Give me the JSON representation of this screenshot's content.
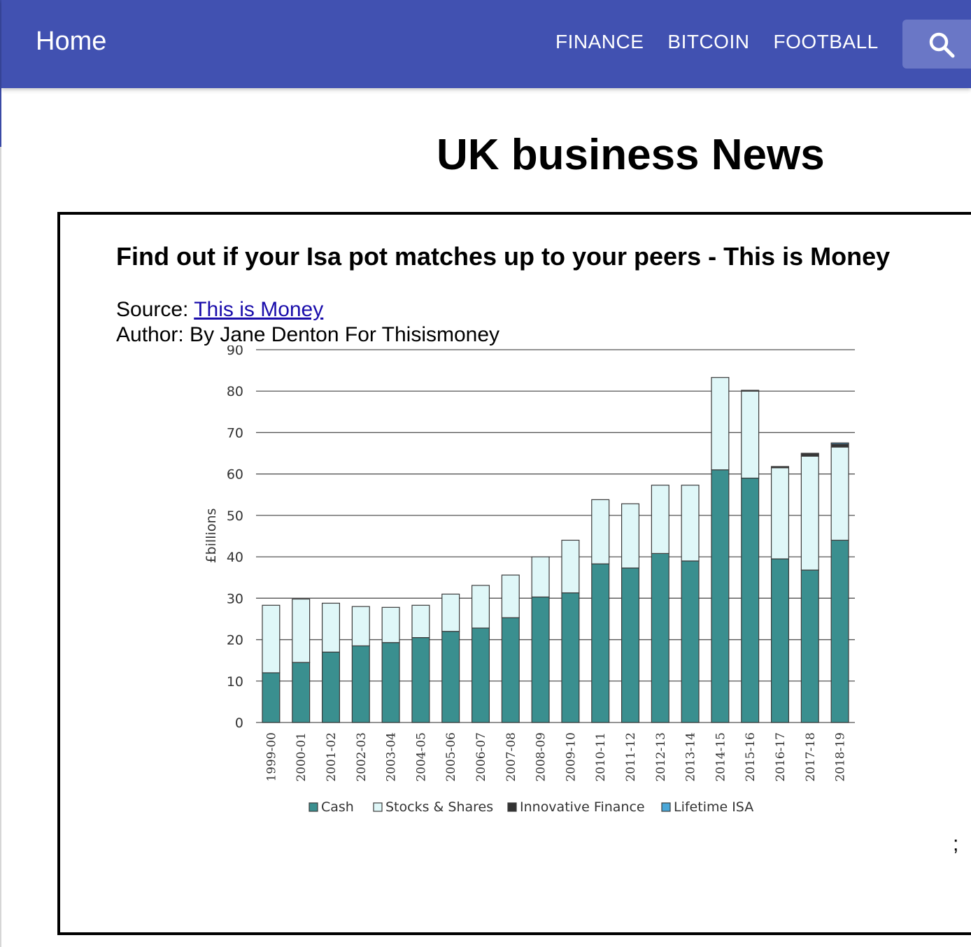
{
  "nav": {
    "home": "Home",
    "links": [
      "FINANCE",
      "BITCOIN",
      "FOOTBALL"
    ],
    "brand_color": "#4151b1"
  },
  "page": {
    "title": "UK business News"
  },
  "article": {
    "title": "Find out if your Isa pot matches up to your peers - This is Money",
    "source_label": "Source: ",
    "source_link": "This is Money",
    "author": "Author: By Jane Denton For Thisismoney",
    "trailing_char": ";"
  },
  "chart_data": {
    "type": "bar",
    "stacked": true,
    "title": "",
    "xlabel": "",
    "ylabel": "£billions",
    "ylim": [
      0,
      90
    ],
    "yticks": [
      0,
      10,
      20,
      30,
      40,
      50,
      60,
      70,
      80,
      90
    ],
    "grid": true,
    "legend_position": "bottom",
    "categories": [
      "1999-00",
      "2000-01",
      "2001-02",
      "2002-03",
      "2003-04",
      "2004-05",
      "2005-06",
      "2006-07",
      "2007-08",
      "2008-09",
      "2009-10",
      "2010-11",
      "2011-12",
      "2012-13",
      "2013-14",
      "2014-15",
      "2015-16",
      "2016-17",
      "2017-18",
      "2018-19"
    ],
    "series": [
      {
        "name": "Cash",
        "color": "#3a8f8f",
        "values": [
          12,
          14.5,
          17,
          18.5,
          19.3,
          20.5,
          22,
          22.8,
          25.3,
          30.3,
          31.3,
          38.3,
          37.3,
          40.8,
          39,
          61,
          59,
          39.5,
          36.8,
          44
        ]
      },
      {
        "name": "Stocks & Shares",
        "color": "#dff7f8",
        "values": [
          16.3,
          15.3,
          11.8,
          9.5,
          8.5,
          7.8,
          9,
          10.3,
          10.3,
          9.7,
          12.7,
          15.5,
          15.5,
          16.5,
          18.3,
          22.3,
          21,
          22,
          27.5,
          22.5
        ]
      },
      {
        "name": "Innovative Finance",
        "color": "#333333",
        "values": [
          0,
          0,
          0,
          0,
          0,
          0,
          0,
          0,
          0,
          0,
          0,
          0,
          0,
          0,
          0,
          0,
          0.2,
          0.3,
          0.5,
          0.7
        ]
      },
      {
        "name": "Lifetime ISA",
        "color": "#4aa7d8",
        "values": [
          0,
          0,
          0,
          0,
          0,
          0,
          0,
          0,
          0,
          0,
          0,
          0,
          0,
          0,
          0,
          0,
          0,
          0,
          0.2,
          0.3
        ]
      }
    ]
  }
}
